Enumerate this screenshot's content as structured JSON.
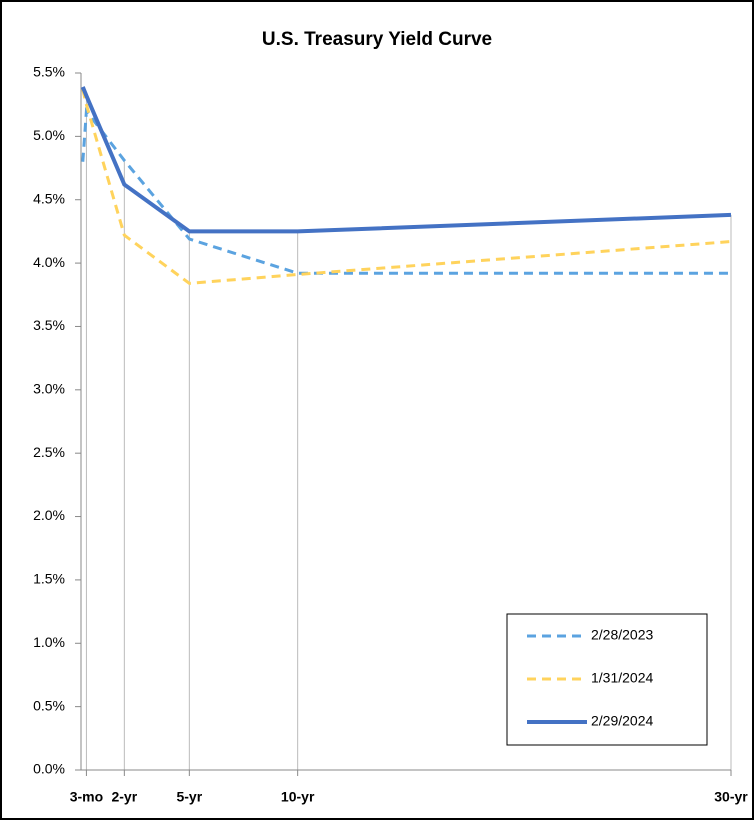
{
  "chart_data": {
    "type": "line",
    "title": "U.S. Treasury Yield Curve",
    "x": [
      0.0833,
      0.25,
      2,
      5,
      10,
      30
    ],
    "xlim": [
      0,
      30
    ],
    "xticks": [
      {
        "value": 0.25,
        "label": "3-mo"
      },
      {
        "value": 2,
        "label": "2-yr"
      },
      {
        "value": 5,
        "label": "5-yr"
      },
      {
        "value": 10,
        "label": "10-yr"
      },
      {
        "value": 30,
        "label": "30-yr"
      }
    ],
    "ylim": [
      0,
      5.5
    ],
    "yticks": [
      {
        "value": 0,
        "label": "0.0%"
      },
      {
        "value": 0.5,
        "label": "0.5%"
      },
      {
        "value": 1,
        "label": "1.0%"
      },
      {
        "value": 1.5,
        "label": "1.5%"
      },
      {
        "value": 2,
        "label": "2.0%"
      },
      {
        "value": 2.5,
        "label": "2.5%"
      },
      {
        "value": 3,
        "label": "3.0%"
      },
      {
        "value": 3.5,
        "label": "3.5%"
      },
      {
        "value": 4,
        "label": "4.0%"
      },
      {
        "value": 4.5,
        "label": "4.5%"
      },
      {
        "value": 5,
        "label": "5.0%"
      },
      {
        "value": 5.5,
        "label": "5.5%"
      }
    ],
    "legend": "bottom-right",
    "series": [
      {
        "name": "2/28/2023",
        "color": "#5ba3e0",
        "dashed": true,
        "values": [
          4.8,
          5.2,
          4.81,
          4.19,
          3.92,
          3.92
        ]
      },
      {
        "name": "1/31/2024",
        "color": "#ffd35c",
        "dashed": true,
        "values": [
          5.37,
          5.25,
          4.22,
          3.84,
          3.91,
          4.17
        ]
      },
      {
        "name": "2/29/2024",
        "color": "#4472c4",
        "dashed": false,
        "values": [
          5.39,
          5.32,
          4.62,
          4.25,
          4.25,
          4.38
        ]
      }
    ]
  }
}
